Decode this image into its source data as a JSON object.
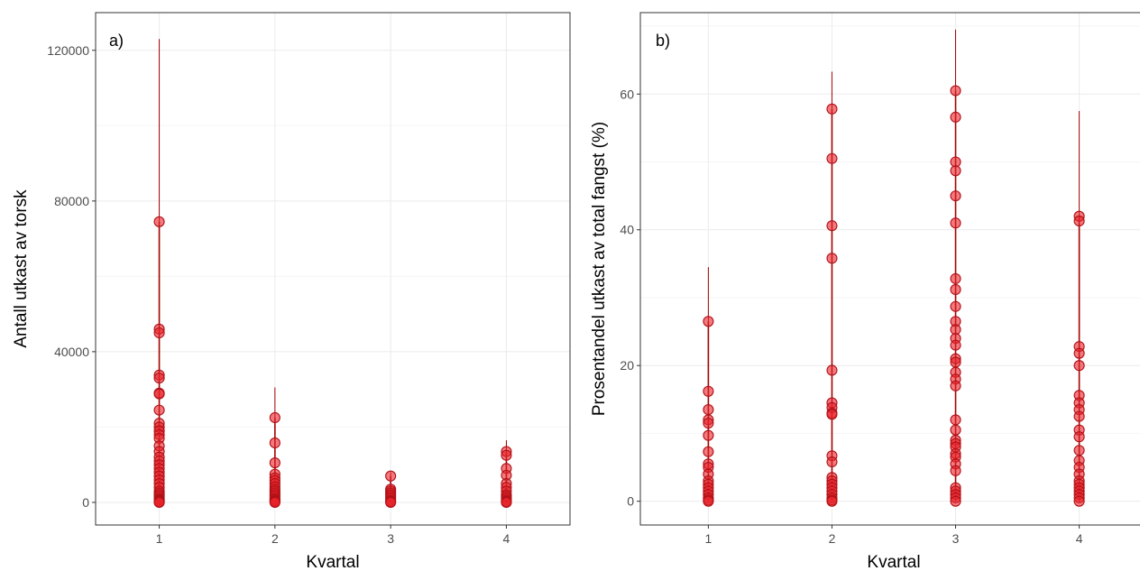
{
  "colors": {
    "point_fill": "#e8232a",
    "point_stroke": "#b01016",
    "errorbar": "#a50000",
    "grid_major": "#ebebeb",
    "grid_minor": "#f5f5f5",
    "panel_border": "#333333"
  },
  "chart_data": [
    {
      "type": "scatter",
      "panel_label": "a)",
      "xlabel": "Kvartal",
      "ylabel": "Antall utkast av torsk",
      "x_ticks": [
        "1",
        "2",
        "3",
        "4"
      ],
      "y_ticks": [
        "0",
        "40000",
        "80000",
        "120000"
      ],
      "xlim": [
        0.45,
        4.55
      ],
      "ylim": [
        -6000,
        130000
      ],
      "grid": true,
      "series": [
        {
          "x": 1,
          "y": [
            74500,
            46000,
            45000,
            33800,
            33000,
            29000,
            28800,
            24500,
            21000,
            20000,
            19000,
            18000,
            17000,
            15000,
            13500,
            12000,
            11000,
            10000,
            9000,
            8000,
            7000,
            6000,
            5000,
            4000,
            3000,
            2500,
            2000,
            1500,
            1000,
            700,
            500,
            300,
            100,
            0
          ],
          "error_max": 123000
        },
        {
          "x": 2,
          "y": [
            22500,
            15800,
            10500,
            7500,
            6500,
            5800,
            5000,
            4200,
            3500,
            3000,
            2500,
            2000,
            1500,
            1000,
            700,
            400,
            200,
            0
          ],
          "error_max": 30500
        },
        {
          "x": 3,
          "y": [
            7000,
            3500,
            3000,
            2500,
            2000,
            1500,
            1000,
            500,
            200,
            0
          ],
          "error_max": 8000
        },
        {
          "x": 4,
          "y": [
            13500,
            12500,
            9000,
            7200,
            5000,
            4000,
            3000,
            2000,
            1500,
            1000,
            500,
            200,
            0
          ],
          "error_max": 16500
        }
      ]
    },
    {
      "type": "scatter",
      "panel_label": "b)",
      "xlabel": "Kvartal",
      "ylabel": "Prosentandel utkast av total fangst (%)",
      "x_ticks": [
        "1",
        "2",
        "3",
        "4"
      ],
      "y_ticks": [
        "0",
        "20",
        "40",
        "60"
      ],
      "xlim": [
        0.45,
        4.55
      ],
      "ylim": [
        -3.5,
        72
      ],
      "grid": true,
      "series": [
        {
          "x": 1,
          "y": [
            26.5,
            16.2,
            13.5,
            12,
            11.5,
            9.7,
            7.3,
            5.5,
            5,
            4,
            3,
            2.5,
            2,
            1.5,
            1,
            0.5,
            0.2,
            0
          ],
          "error_max": 34.5
        },
        {
          "x": 2,
          "y": [
            57.8,
            50.5,
            40.6,
            35.8,
            19.3,
            14.5,
            13.8,
            13,
            12.8,
            6.7,
            5.8,
            3.5,
            3,
            2.5,
            2,
            1.5,
            1,
            0.5,
            0.2,
            0
          ],
          "error_max": 63.3
        },
        {
          "x": 3,
          "y": [
            60.5,
            56.6,
            50,
            48.7,
            45,
            41,
            32.8,
            31.2,
            28.7,
            26.5,
            25.3,
            24,
            23,
            21,
            20.5,
            19,
            18,
            17,
            12,
            10.5,
            9,
            8.5,
            8,
            7,
            6.5,
            5.5,
            4.5,
            2,
            1.5,
            1,
            0.5,
            0
          ],
          "error_max": 69.5
        },
        {
          "x": 4,
          "y": [
            42,
            41.3,
            22.8,
            21.8,
            20,
            15.6,
            14.5,
            13.5,
            12.5,
            10.5,
            9.5,
            7.5,
            6,
            5,
            4,
            3,
            2.5,
            2,
            1.5,
            1,
            0.5,
            0
          ],
          "error_max": 57.5
        }
      ]
    }
  ]
}
